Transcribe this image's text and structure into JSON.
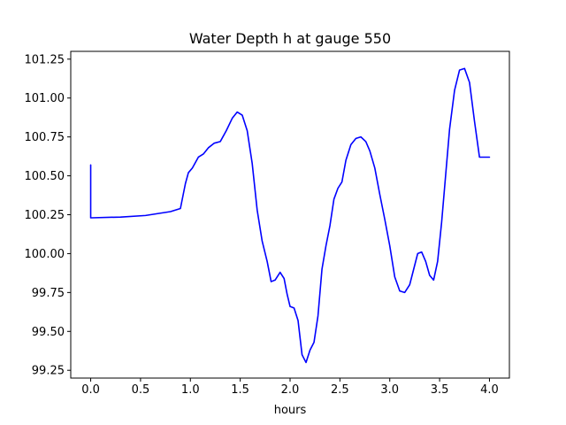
{
  "chart_data": {
    "type": "line",
    "title": "Water Depth h at gauge 550",
    "xlabel": "hours",
    "ylabel": "",
    "xlim": [
      -0.2,
      4.2
    ],
    "ylim": [
      99.2,
      101.3
    ],
    "xticks": [
      0.0,
      0.5,
      1.0,
      1.5,
      2.0,
      2.5,
      3.0,
      3.5,
      4.0
    ],
    "xtick_labels": [
      "0.0",
      "0.5",
      "1.0",
      "1.5",
      "2.0",
      "2.5",
      "3.0",
      "3.5",
      "4.0"
    ],
    "yticks": [
      99.25,
      99.5,
      99.75,
      100.0,
      100.25,
      100.5,
      100.75,
      101.0,
      101.25
    ],
    "ytick_labels": [
      "99.25",
      "99.50",
      "99.75",
      "100.00",
      "100.25",
      "100.50",
      "100.75",
      "101.00",
      "101.25"
    ],
    "grid": false,
    "series": [
      {
        "color": "#0000ff",
        "x": [
          0.0,
          0.0,
          0.01,
          0.3,
          0.55,
          0.65,
          0.8,
          0.9,
          0.95,
          0.98,
          1.02,
          1.08,
          1.13,
          1.18,
          1.24,
          1.3,
          1.36,
          1.42,
          1.47,
          1.52,
          1.57,
          1.62,
          1.67,
          1.72,
          1.77,
          1.81,
          1.85,
          1.9,
          1.94,
          1.97,
          2.0,
          2.04,
          2.08,
          2.12,
          2.16,
          2.2,
          2.24,
          2.28,
          2.32,
          2.36,
          2.4,
          2.44,
          2.48,
          2.52,
          2.56,
          2.61,
          2.66,
          2.71,
          2.76,
          2.8,
          2.85,
          2.9,
          2.95,
          3.0,
          3.05,
          3.1,
          3.15,
          3.2,
          3.24,
          3.28,
          3.32,
          3.36,
          3.4,
          3.44,
          3.48,
          3.52,
          3.56,
          3.6,
          3.65,
          3.7,
          3.75,
          3.8,
          3.85,
          3.9,
          3.95,
          4.0
        ],
        "y": [
          100.57,
          100.23,
          100.23,
          100.235,
          100.245,
          100.255,
          100.27,
          100.29,
          100.45,
          100.52,
          100.55,
          100.62,
          100.64,
          100.68,
          100.71,
          100.72,
          100.79,
          100.87,
          100.91,
          100.89,
          100.79,
          100.58,
          100.28,
          100.08,
          99.95,
          99.82,
          99.83,
          99.88,
          99.84,
          99.74,
          99.66,
          99.65,
          99.57,
          99.35,
          99.3,
          99.38,
          99.43,
          99.6,
          99.9,
          100.05,
          100.18,
          100.35,
          100.42,
          100.46,
          100.6,
          100.7,
          100.74,
          100.75,
          100.72,
          100.66,
          100.55,
          100.38,
          100.22,
          100.05,
          99.85,
          99.76,
          99.75,
          99.8,
          99.9,
          100.0,
          100.01,
          99.95,
          99.86,
          99.83,
          99.95,
          100.2,
          100.5,
          100.8,
          101.05,
          101.18,
          101.19,
          101.1,
          100.85,
          100.62,
          100.62,
          100.62
        ]
      }
    ]
  }
}
